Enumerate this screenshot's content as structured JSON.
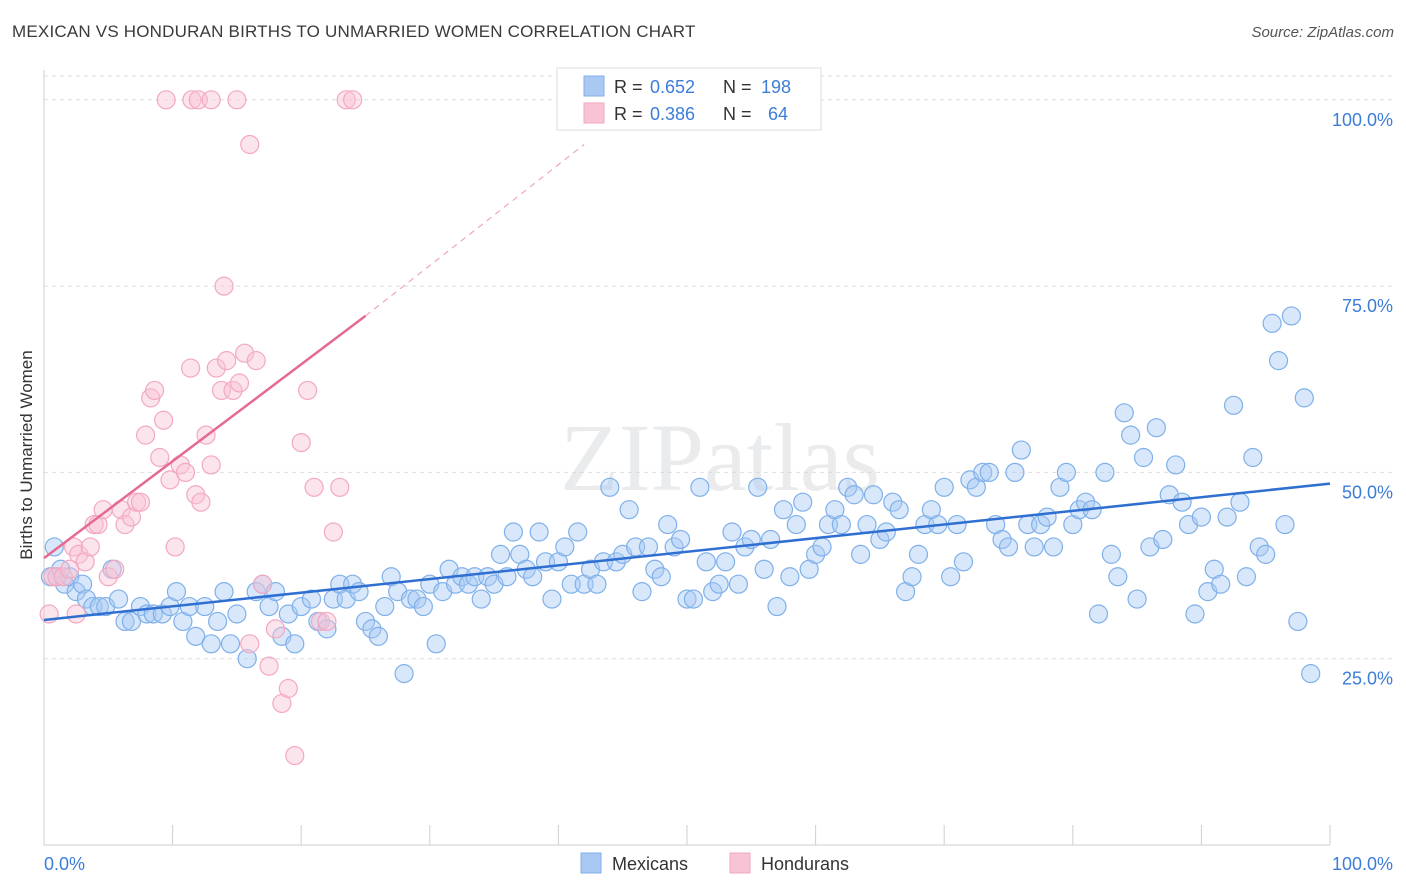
{
  "title": "MEXICAN VS HONDURAN BIRTHS TO UNMARRIED WOMEN CORRELATION CHART",
  "source": "Source: ZipAtlas.com",
  "watermark": "ZIPatlas",
  "chart_data": {
    "type": "scatter",
    "xlabel": "",
    "ylabel": "Births to Unmarried Women",
    "xlim": [
      0,
      100
    ],
    "ylim": [
      0,
      104
    ],
    "x_tick_labels": [
      "0.0%",
      "100.0%"
    ],
    "y_ticks": [
      25,
      50,
      75,
      100
    ],
    "y_tick_labels": [
      "25.0%",
      "50.0%",
      "75.0%",
      "100.0%"
    ],
    "grid": true,
    "legend_position": "top-center",
    "legend": [
      {
        "r_label": "R =",
        "r": "0.652",
        "n_label": "N =",
        "n": "198"
      },
      {
        "r_label": "R =",
        "r": "0.386",
        "n_label": "N =",
        "n": "64"
      }
    ],
    "series": [
      {
        "name": "Mexicans",
        "color": "#7fb0ea",
        "fill": "#a9c9f3",
        "line_color": "#2f6fd1",
        "trend": {
          "x0": 0,
          "y0": 30.2,
          "x1": 100,
          "y1": 48.5
        },
        "points": [
          [
            0.5,
            36
          ],
          [
            0.8,
            40
          ],
          [
            1,
            36
          ],
          [
            1.3,
            37
          ],
          [
            1.6,
            35
          ],
          [
            2,
            36
          ],
          [
            2.5,
            34
          ],
          [
            3,
            35
          ],
          [
            3.3,
            33
          ],
          [
            3.8,
            32
          ],
          [
            4.3,
            32
          ],
          [
            4.8,
            32
          ],
          [
            5.3,
            37
          ],
          [
            5.8,
            33
          ],
          [
            6.3,
            30
          ],
          [
            6.8,
            30
          ],
          [
            7.5,
            32
          ],
          [
            8,
            31
          ],
          [
            8.5,
            31
          ],
          [
            9.2,
            31
          ],
          [
            9.8,
            32
          ],
          [
            10.3,
            34
          ],
          [
            10.8,
            30
          ],
          [
            11.3,
            32
          ],
          [
            11.8,
            28
          ],
          [
            12.5,
            32
          ],
          [
            13,
            27
          ],
          [
            13.5,
            30
          ],
          [
            14,
            34
          ],
          [
            14.5,
            27
          ],
          [
            15,
            31
          ],
          [
            15.8,
            25
          ],
          [
            16.5,
            34
          ],
          [
            17,
            35
          ],
          [
            17.5,
            32
          ],
          [
            18,
            34
          ],
          [
            18.5,
            28
          ],
          [
            19,
            31
          ],
          [
            19.5,
            27
          ],
          [
            20,
            32
          ],
          [
            20.8,
            33
          ],
          [
            21.3,
            30
          ],
          [
            22,
            29
          ],
          [
            22.5,
            33
          ],
          [
            23,
            35
          ],
          [
            23.5,
            33
          ],
          [
            24,
            35
          ],
          [
            24.5,
            34
          ],
          [
            25,
            30
          ],
          [
            25.5,
            29
          ],
          [
            26,
            28
          ],
          [
            26.5,
            32
          ],
          [
            27,
            36
          ],
          [
            27.5,
            34
          ],
          [
            28,
            23
          ],
          [
            28.5,
            33
          ],
          [
            29,
            33
          ],
          [
            29.5,
            32
          ],
          [
            30,
            35
          ],
          [
            30.5,
            27
          ],
          [
            31,
            34
          ],
          [
            31.5,
            37
          ],
          [
            32,
            35
          ],
          [
            32.5,
            36
          ],
          [
            33,
            35
          ],
          [
            33.5,
            36
          ],
          [
            34,
            33
          ],
          [
            34.5,
            36
          ],
          [
            35,
            35
          ],
          [
            35.5,
            39
          ],
          [
            36,
            36
          ],
          [
            36.5,
            42
          ],
          [
            37,
            39
          ],
          [
            37.5,
            37
          ],
          [
            38,
            36
          ],
          [
            38.5,
            42
          ],
          [
            39,
            38
          ],
          [
            39.5,
            33
          ],
          [
            40,
            38
          ],
          [
            40.5,
            40
          ],
          [
            41,
            35
          ],
          [
            41.5,
            42
          ],
          [
            42,
            35
          ],
          [
            42.5,
            37
          ],
          [
            43,
            35
          ],
          [
            43.5,
            38
          ],
          [
            44,
            48
          ],
          [
            44.5,
            38
          ],
          [
            45,
            39
          ],
          [
            45.5,
            45
          ],
          [
            46,
            40
          ],
          [
            46.5,
            34
          ],
          [
            47,
            40
          ],
          [
            47.5,
            37
          ],
          [
            48,
            36
          ],
          [
            48.5,
            43
          ],
          [
            49,
            40
          ],
          [
            49.5,
            41
          ],
          [
            50,
            33
          ],
          [
            50.5,
            33
          ],
          [
            51,
            48
          ],
          [
            51.5,
            38
          ],
          [
            52,
            34
          ],
          [
            52.5,
            35
          ],
          [
            53,
            38
          ],
          [
            53.5,
            42
          ],
          [
            54,
            35
          ],
          [
            54.5,
            40
          ],
          [
            55,
            41
          ],
          [
            55.5,
            48
          ],
          [
            56,
            37
          ],
          [
            56.5,
            41
          ],
          [
            57,
            32
          ],
          [
            57.5,
            45
          ],
          [
            58,
            36
          ],
          [
            58.5,
            43
          ],
          [
            59,
            46
          ],
          [
            59.5,
            37
          ],
          [
            60,
            39
          ],
          [
            60.5,
            40
          ],
          [
            61,
            43
          ],
          [
            61.5,
            45
          ],
          [
            62,
            43
          ],
          [
            62.5,
            48
          ],
          [
            63,
            47
          ],
          [
            63.5,
            39
          ],
          [
            64,
            43
          ],
          [
            64.5,
            47
          ],
          [
            65,
            41
          ],
          [
            65.5,
            42
          ],
          [
            66,
            46
          ],
          [
            66.5,
            45
          ],
          [
            67,
            34
          ],
          [
            67.5,
            36
          ],
          [
            68,
            39
          ],
          [
            68.5,
            43
          ],
          [
            69,
            45
          ],
          [
            69.5,
            43
          ],
          [
            70,
            48
          ],
          [
            70.5,
            36
          ],
          [
            71,
            43
          ],
          [
            71.5,
            38
          ],
          [
            72,
            49
          ],
          [
            72.5,
            48
          ],
          [
            73,
            50
          ],
          [
            73.5,
            50
          ],
          [
            74,
            43
          ],
          [
            74.5,
            41
          ],
          [
            75,
            40
          ],
          [
            75.5,
            50
          ],
          [
            76,
            53
          ],
          [
            76.5,
            43
          ],
          [
            77,
            40
          ],
          [
            77.5,
            43
          ],
          [
            78,
            44
          ],
          [
            78.5,
            40
          ],
          [
            79,
            48
          ],
          [
            79.5,
            50
          ],
          [
            80,
            43
          ],
          [
            80.5,
            45
          ],
          [
            81,
            46
          ],
          [
            81.5,
            45
          ],
          [
            82,
            31
          ],
          [
            82.5,
            50
          ],
          [
            83,
            39
          ],
          [
            83.5,
            36
          ],
          [
            84,
            58
          ],
          [
            84.5,
            55
          ],
          [
            85,
            33
          ],
          [
            85.5,
            52
          ],
          [
            86,
            40
          ],
          [
            86.5,
            56
          ],
          [
            87,
            41
          ],
          [
            87.5,
            47
          ],
          [
            88,
            51
          ],
          [
            88.5,
            46
          ],
          [
            89,
            43
          ],
          [
            89.5,
            31
          ],
          [
            90,
            44
          ],
          [
            90.5,
            34
          ],
          [
            91,
            37
          ],
          [
            91.5,
            35
          ],
          [
            92,
            44
          ],
          [
            92.5,
            59
          ],
          [
            93,
            46
          ],
          [
            93.5,
            36
          ],
          [
            94,
            52
          ],
          [
            94.5,
            40
          ],
          [
            95,
            39
          ],
          [
            95.5,
            70
          ],
          [
            96,
            65
          ],
          [
            96.5,
            43
          ],
          [
            97,
            71
          ],
          [
            97.5,
            30
          ],
          [
            98,
            60
          ],
          [
            98.5,
            23
          ]
        ]
      },
      {
        "name": "Hondurans",
        "color": "#f3a8c0",
        "fill": "#f8c4d5",
        "line_color": "#e56a92",
        "trend": {
          "x0": 0,
          "y0": 38.5,
          "x1": 25,
          "y1": 71
        },
        "trend_dashed": {
          "x0": 25,
          "y0": 71,
          "x1": 42,
          "y1": 94
        },
        "points": [
          [
            0.4,
            31
          ],
          [
            0.7,
            36
          ],
          [
            1,
            36
          ],
          [
            1.5,
            36
          ],
          [
            2,
            37
          ],
          [
            2.3,
            40
          ],
          [
            2.7,
            39
          ],
          [
            3.2,
            38
          ],
          [
            3.6,
            40
          ],
          [
            3.9,
            43
          ],
          [
            4.2,
            43
          ],
          [
            4.6,
            45
          ],
          [
            5,
            36
          ],
          [
            5.5,
            37
          ],
          [
            6,
            45
          ],
          [
            6.3,
            43
          ],
          [
            6.8,
            44
          ],
          [
            7.2,
            46
          ],
          [
            7.5,
            46
          ],
          [
            7.9,
            55
          ],
          [
            8.3,
            60
          ],
          [
            8.6,
            61
          ],
          [
            9,
            52
          ],
          [
            9.3,
            57
          ],
          [
            9.8,
            49
          ],
          [
            10.2,
            40
          ],
          [
            10.6,
            51
          ],
          [
            11,
            50
          ],
          [
            11.4,
            64
          ],
          [
            11.8,
            47
          ],
          [
            12.2,
            46
          ],
          [
            12.6,
            55
          ],
          [
            13,
            51
          ],
          [
            13.4,
            64
          ],
          [
            13.8,
            61
          ],
          [
            14.2,
            65
          ],
          [
            14.7,
            61
          ],
          [
            15.2,
            62
          ],
          [
            15.6,
            66
          ],
          [
            16,
            27
          ],
          [
            16.5,
            65
          ],
          [
            17,
            35
          ],
          [
            17.5,
            24
          ],
          [
            18,
            29
          ],
          [
            18.5,
            19
          ],
          [
            19,
            21
          ],
          [
            19.5,
            12
          ],
          [
            20,
            54
          ],
          [
            20.5,
            61
          ],
          [
            21,
            48
          ],
          [
            21.5,
            30
          ],
          [
            22,
            30
          ],
          [
            22.5,
            42
          ],
          [
            23,
            48
          ],
          [
            23.5,
            100
          ],
          [
            24,
            100
          ],
          [
            9.5,
            100
          ],
          [
            11.5,
            100
          ],
          [
            12,
            100
          ],
          [
            13,
            100
          ],
          [
            15,
            100
          ],
          [
            16,
            94
          ],
          [
            14,
            75
          ],
          [
            2.5,
            31
          ]
        ]
      }
    ]
  },
  "bottom_legend": [
    "Mexicans",
    "Hondurans"
  ]
}
